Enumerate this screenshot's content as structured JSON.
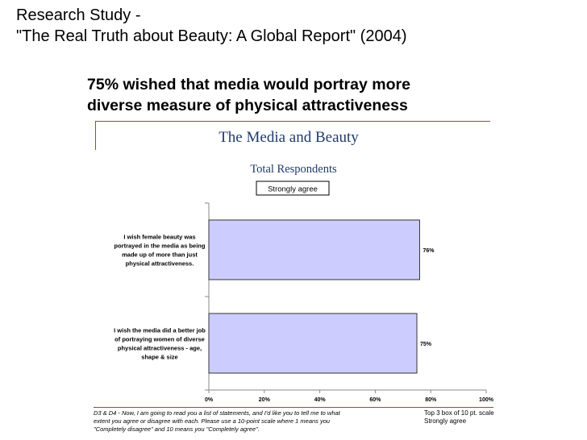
{
  "slide": {
    "title_lines": [
      "Research Study -",
      "\"The Real Truth about Beauty: A Global Report\" (2004)"
    ],
    "subtitle_lines": [
      "75% wished that media would portray more",
      "diverse measure of physical attractiveness"
    ]
  },
  "colors": {
    "bar_fill": "#ccccff",
    "bar_stroke": "#333333",
    "chart_title": "#1f3a6b",
    "rule": "#c0392b"
  },
  "chart_data": {
    "type": "bar",
    "orientation": "horizontal",
    "title": "The Media and Beauty",
    "subtitle": "Total Respondents",
    "legend": [
      "Strongly agree"
    ],
    "legend_position": "top-center",
    "categories": [
      [
        "I wish female beauty was",
        "portrayed in the media as being",
        "made up of more than just",
        "physical attractiveness."
      ],
      [
        "I wish the media did a better job",
        "of portraying women of diverse",
        "physical attractiveness - age,",
        "shape & size"
      ]
    ],
    "series": [
      {
        "name": "Strongly agree",
        "values": [
          76,
          75
        ]
      }
    ],
    "data_labels": [
      "76%",
      "75%"
    ],
    "x_ticks": [
      "0%",
      "20%",
      "40%",
      "60%",
      "80%",
      "100%"
    ],
    "xlim": [
      0,
      100
    ],
    "grid": false
  },
  "notes": {
    "footnote_lines": [
      "D3 & D4 - Now, I am going to read you a list of statements, and I'd like you to tell me to what",
      "extent you agree or disagree with each.  Please use a 10-point scale where 1 means you",
      "\"Completely disagree\" and 10 means you \"Completely agree\"."
    ],
    "box_note_lines": [
      "Top 3 box of 10 pt. scale",
      "Strongly agree"
    ]
  }
}
